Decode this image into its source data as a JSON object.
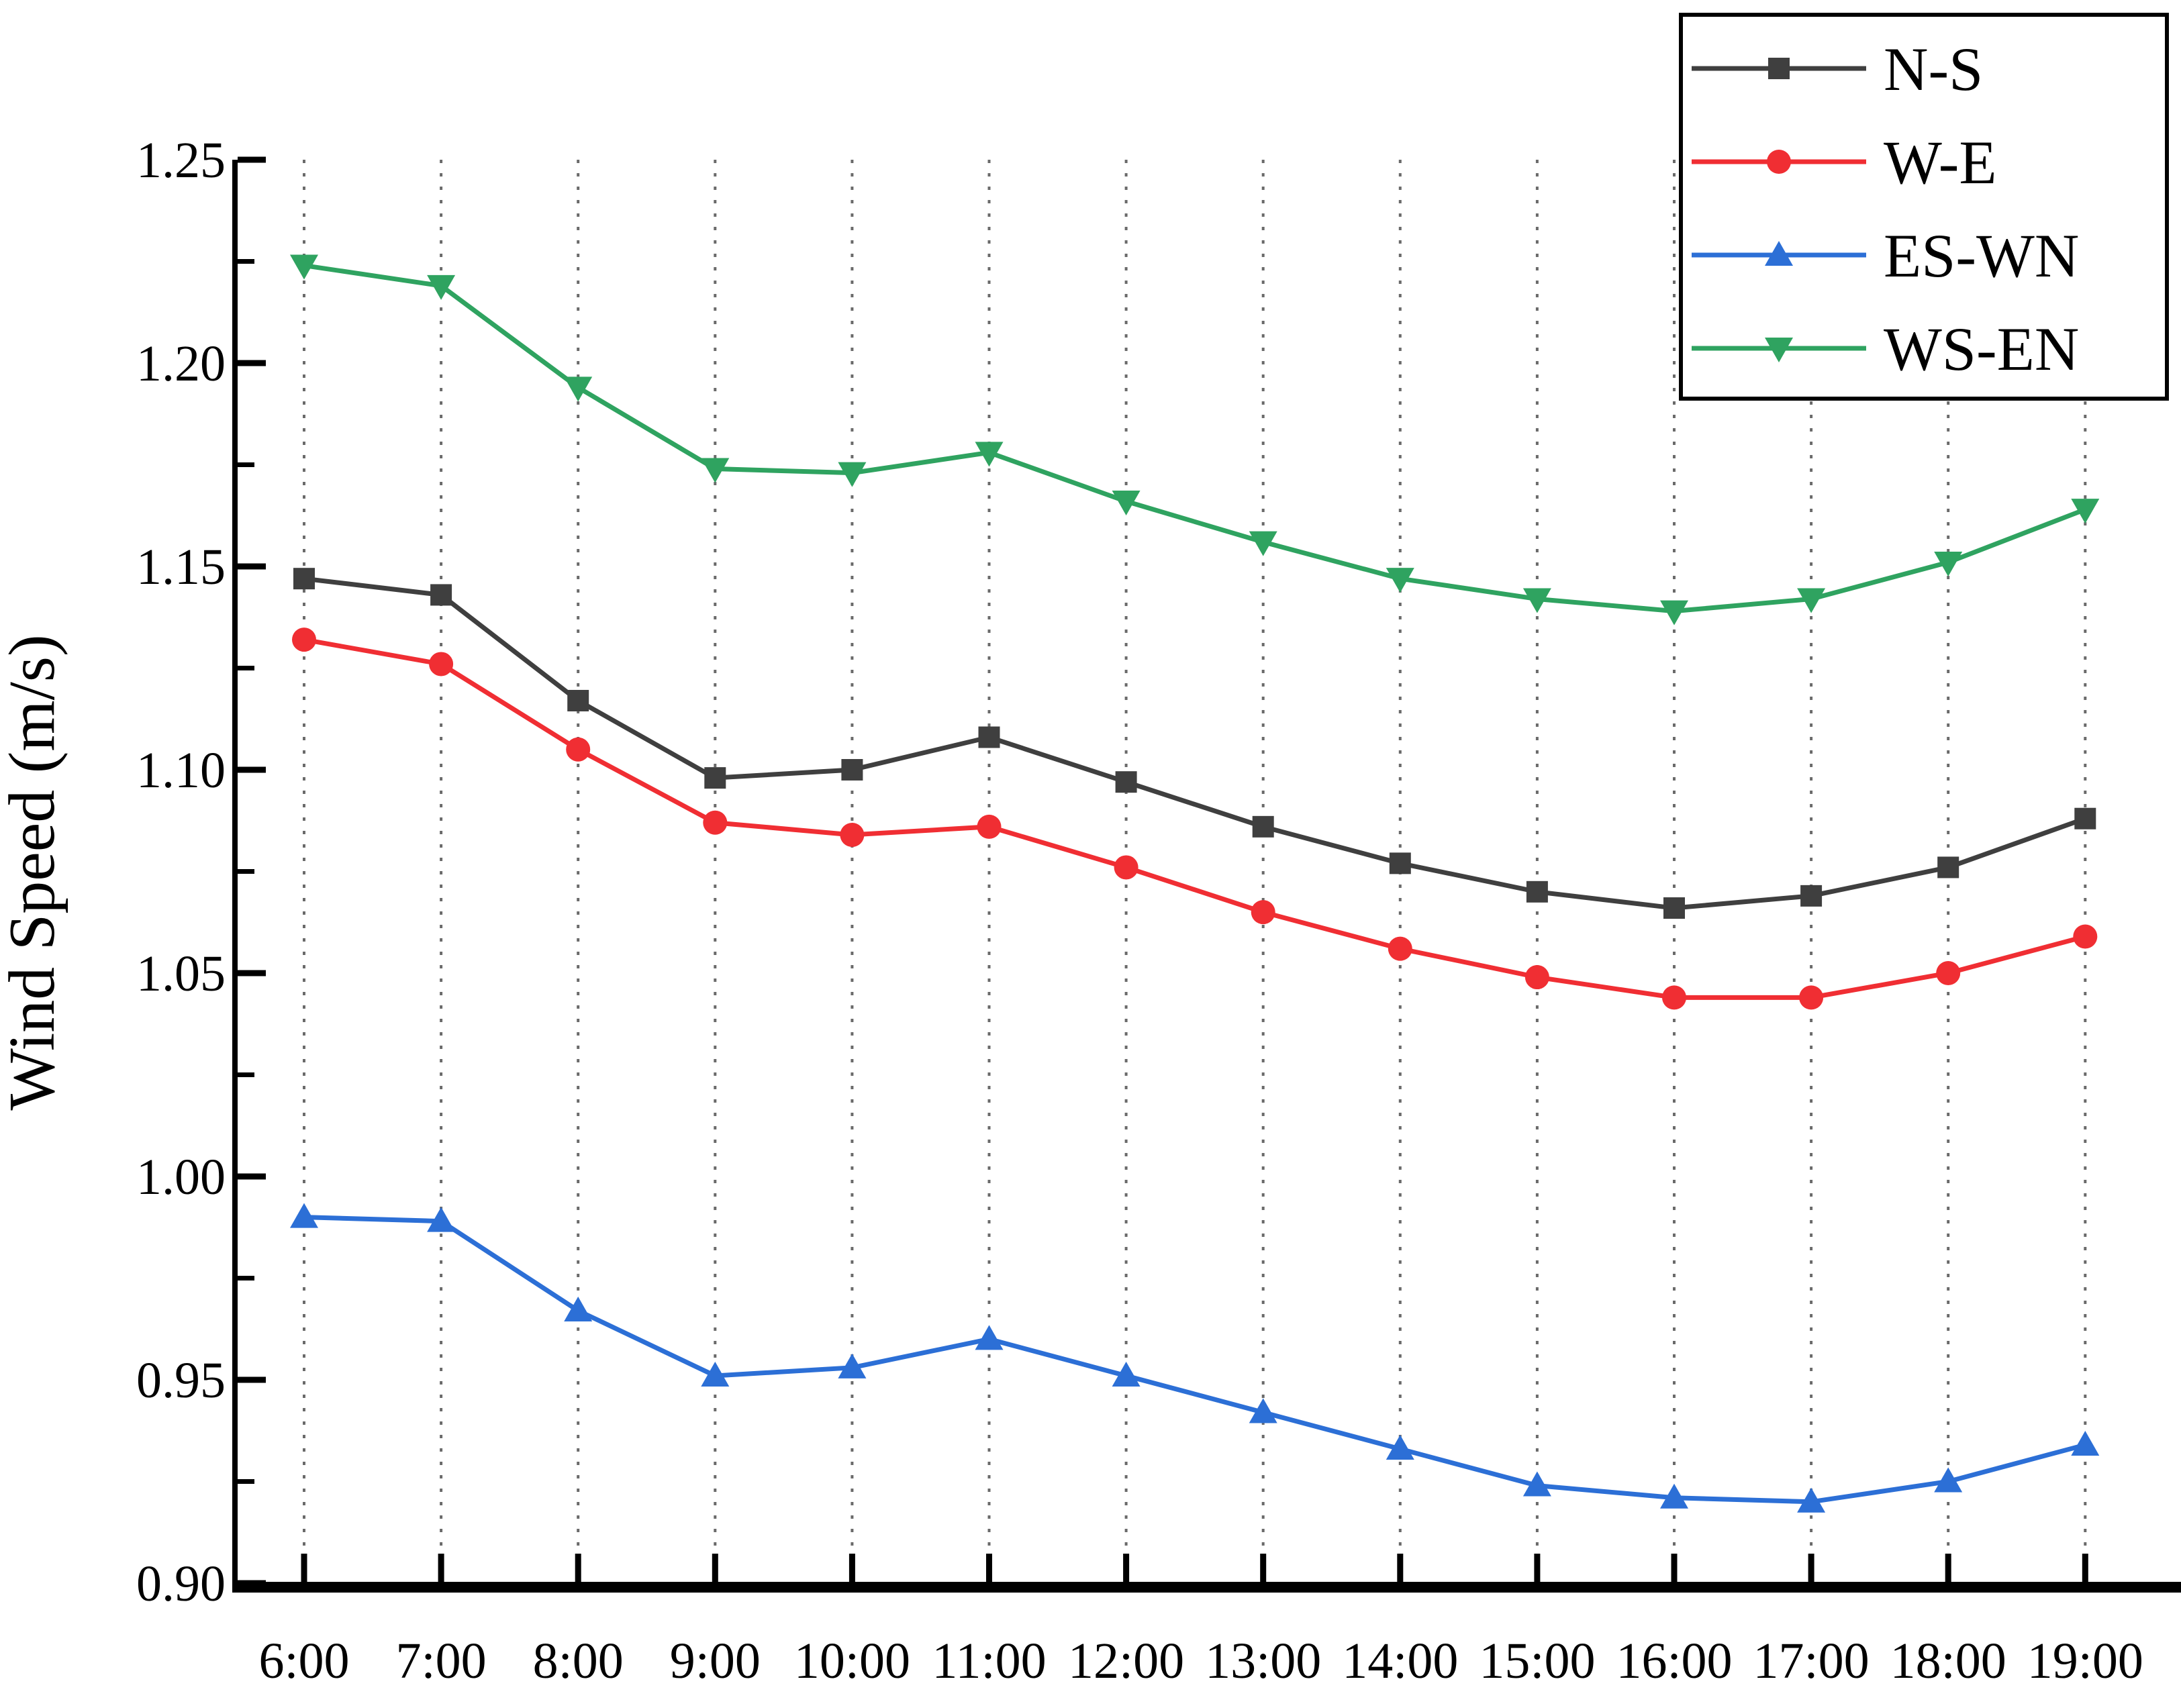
{
  "chart_data": {
    "type": "line",
    "title": "",
    "xlabel": "",
    "ylabel": "Wind Speed (m/s)",
    "categories": [
      "6:00",
      "7:00",
      "8:00",
      "9:00",
      "10:00",
      "11:00",
      "12:00",
      "13:00",
      "14:00",
      "15:00",
      "16:00",
      "17:00",
      "18:00",
      "19:00"
    ],
    "series": [
      {
        "name": "N-S",
        "color": "#3f3f3f",
        "marker": "square",
        "values": [
          1.147,
          1.143,
          1.117,
          1.098,
          1.1,
          1.108,
          1.097,
          1.086,
          1.077,
          1.07,
          1.066,
          1.069,
          1.076,
          1.088
        ]
      },
      {
        "name": "W-E",
        "color": "#f02e33",
        "marker": "circle",
        "values": [
          1.132,
          1.126,
          1.105,
          1.087,
          1.084,
          1.086,
          1.076,
          1.065,
          1.056,
          1.049,
          1.044,
          1.044,
          1.05,
          1.059
        ]
      },
      {
        "name": "ES-WN",
        "color": "#2c6fd6",
        "marker": "triangle-up",
        "values": [
          0.99,
          0.989,
          0.967,
          0.951,
          0.953,
          0.96,
          0.951,
          0.942,
          0.933,
          0.924,
          0.921,
          0.92,
          0.925,
          0.934
        ]
      },
      {
        "name": "WS-EN",
        "color": "#2fa360",
        "marker": "triangle-down",
        "values": [
          1.224,
          1.219,
          1.194,
          1.174,
          1.173,
          1.178,
          1.166,
          1.156,
          1.147,
          1.142,
          1.139,
          1.142,
          1.151,
          1.164
        ]
      }
    ],
    "ylim": [
      0.9,
      1.25
    ],
    "y_major_step": 0.05,
    "y_minor_step": 0.025,
    "y_tick_labels": [
      "0.90",
      "0.95",
      "1.00",
      "1.05",
      "1.10",
      "1.15",
      "1.20",
      "1.25"
    ],
    "grid": "vertical-dotted",
    "grid_color": "#6a6a6a",
    "axis_color": "#000000",
    "legend_position": "top-right"
  }
}
